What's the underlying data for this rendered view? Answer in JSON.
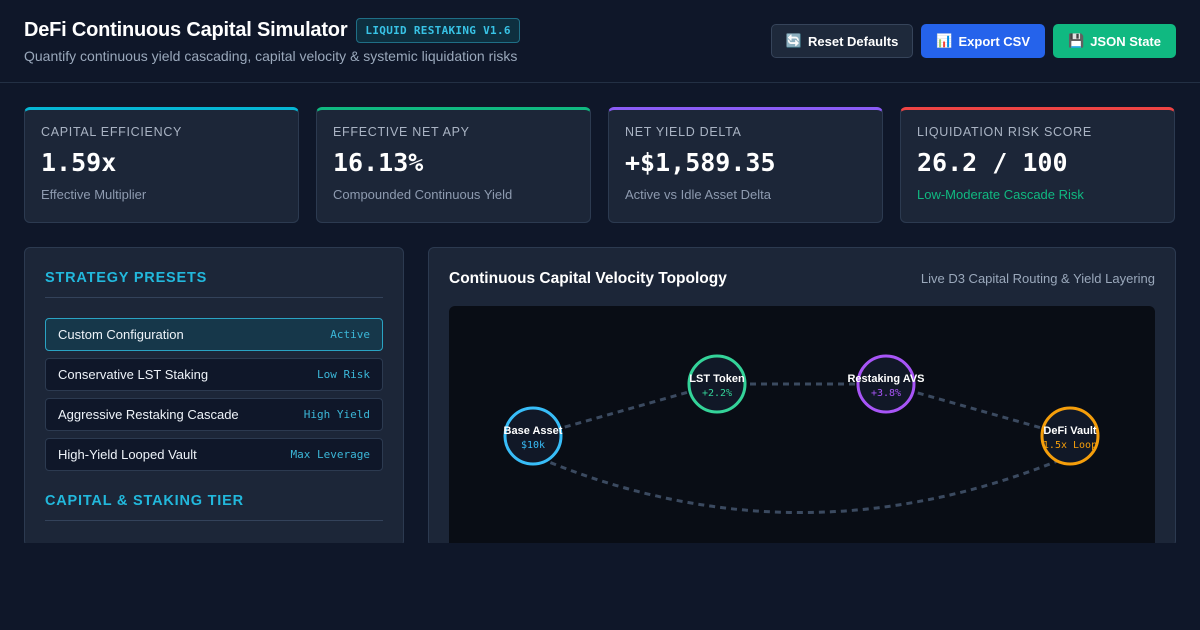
{
  "header": {
    "title": "DeFi Continuous Capital Simulator",
    "badge": "LIQUID RESTAKING V1.6",
    "subtitle": "Quantify continuous yield cascading, capital velocity & systemic liquidation risks",
    "buttons": [
      {
        "label": "Reset Defaults",
        "icon": "refresh-icon",
        "glyph": "🔄",
        "color": "#1e293b"
      },
      {
        "label": "Export CSV",
        "icon": "bar-chart-icon",
        "glyph": "📊",
        "color": "#2563eb"
      },
      {
        "label": "JSON State",
        "icon": "floppy-disk-icon",
        "glyph": "💾",
        "color": "#10b981"
      }
    ]
  },
  "stats": [
    {
      "label": "CAPITAL EFFICIENCY",
      "value": "1.59x",
      "sub": "Effective Multiplier",
      "accent": "#06b6d4",
      "sub_color": "#8e9bb0"
    },
    {
      "label": "EFFECTIVE NET APY",
      "value": "16.13%",
      "sub": "Compounded Continuous Yield",
      "accent": "#10b981",
      "sub_color": "#8e9bb0"
    },
    {
      "label": "NET YIELD DELTA",
      "value": "+$1,589.35",
      "sub": "Active vs Idle Asset Delta",
      "accent": "#8b5cf6",
      "sub_color": "#8e9bb0"
    },
    {
      "label": "LIQUIDATION RISK SCORE",
      "value": "26.2 / 100",
      "sub": "Low-Moderate Cascade Risk",
      "accent": "#ef4444",
      "sub_color": "#10b981"
    }
  ],
  "presets": {
    "title": "STRATEGY PRESETS",
    "items": [
      {
        "name": "Custom Configuration",
        "tag": "Active",
        "active": true
      },
      {
        "name": "Conservative LST Staking",
        "tag": "Low Risk",
        "active": false
      },
      {
        "name": "Aggressive Restaking Cascade",
        "tag": "High Yield",
        "active": false
      },
      {
        "name": "High-Yield Looped Vault",
        "tag": "Max Leverage",
        "active": false
      }
    ]
  },
  "capital": {
    "title": "CAPITAL & STAKING TIER"
  },
  "topology": {
    "title": "Continuous Capital Velocity Topology",
    "subtitle": "Live D3 Capital Routing & Yield Layering",
    "nodes": [
      {
        "id": "base",
        "label": "Base Asset",
        "value": "$10k",
        "color": "#38bdf8"
      },
      {
        "id": "lst",
        "label": "LST Token",
        "value": "+2.2%",
        "color": "#34d399"
      },
      {
        "id": "avs",
        "label": "Restaking AVS",
        "value": "+3.8%",
        "color": "#a855f7"
      },
      {
        "id": "vault",
        "label": "DeFi Vault",
        "value": "1.5x Loop",
        "color": "#f59e0b"
      }
    ],
    "links": [
      {
        "from": "base",
        "to": "lst"
      },
      {
        "from": "lst",
        "to": "avs"
      },
      {
        "from": "avs",
        "to": "vault"
      },
      {
        "from": "vault",
        "to": "base",
        "loop": true
      }
    ]
  }
}
